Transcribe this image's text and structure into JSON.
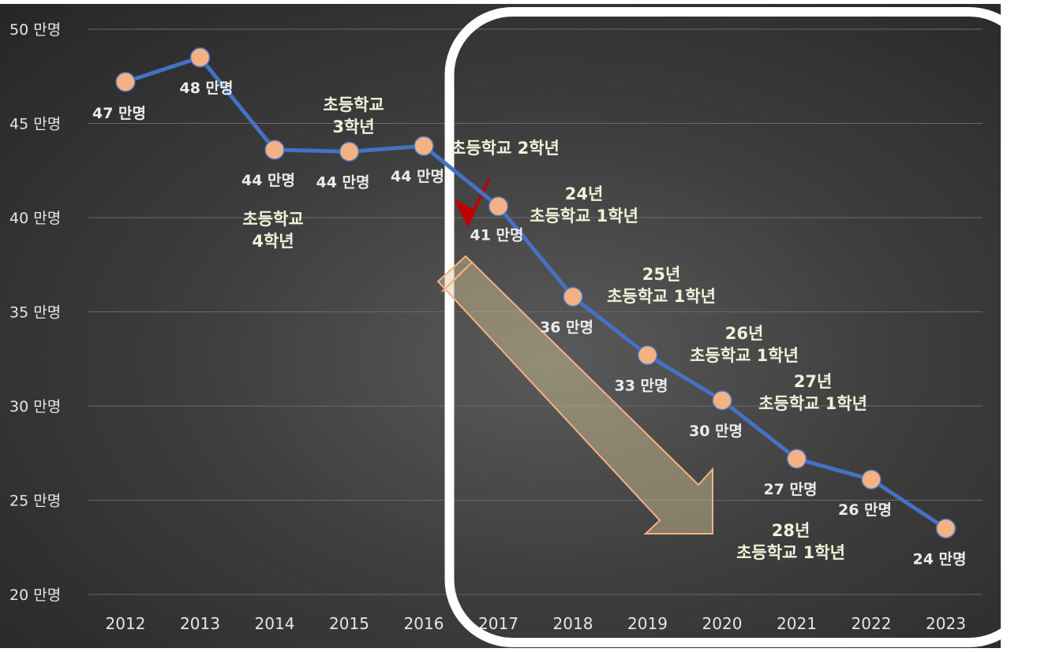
{
  "chart_data": {
    "type": "line",
    "title": "",
    "xlabel": "",
    "ylabel": "",
    "x": [
      "2012",
      "2013",
      "2014",
      "2015",
      "2016",
      "2017",
      "2018",
      "2019",
      "2020",
      "2021",
      "2022",
      "2023"
    ],
    "series": [
      {
        "values": [
          47.2,
          48.5,
          43.6,
          43.5,
          43.8,
          40.6,
          35.8,
          32.7,
          30.3,
          27.2,
          26.1,
          23.5
        ],
        "labels": [
          "47 만명",
          "48 만명",
          "44 만명",
          "44 만명",
          "44 만명",
          "41 만명",
          "36 만명",
          "33 만명",
          "30 만명",
          "27 만명",
          "26 만명",
          "24 만명"
        ]
      }
    ],
    "ylim": [
      20,
      50
    ],
    "yticks": [
      50,
      45,
      40,
      35,
      30,
      25,
      20
    ],
    "ytick_labels": [
      "50 만명",
      "45 만명",
      "40 만명",
      "35 만명",
      "30 만명",
      "25 만명",
      "20 만명"
    ],
    "grid": true,
    "line_color": "#4472C4",
    "marker_color": "#F4B183",
    "annotations": [
      {
        "lines": [
          "초등학교",
          "3학년"
        ],
        "x": "2015"
      },
      {
        "lines": [
          "초등학교",
          "4학년"
        ],
        "x": "2014"
      },
      {
        "lines": [
          "초등학교 2학년"
        ],
        "x": "2016"
      },
      {
        "lines": [
          "24년",
          "초등학교 1학년"
        ],
        "x": "2017"
      },
      {
        "lines": [
          "25년",
          "초등학교 1학년"
        ],
        "x": "2018"
      },
      {
        "lines": [
          "26년",
          "초등학교 1학년"
        ],
        "x": "2019"
      },
      {
        "lines": [
          "27년",
          "초등학교 1학년"
        ],
        "x": "2020"
      },
      {
        "lines": [
          "28년",
          "초등학교 1학년"
        ],
        "x": "2021"
      }
    ],
    "highlight_from": "2017",
    "checkmark_color": "#C00000",
    "arrow_color": "#F4B183"
  }
}
